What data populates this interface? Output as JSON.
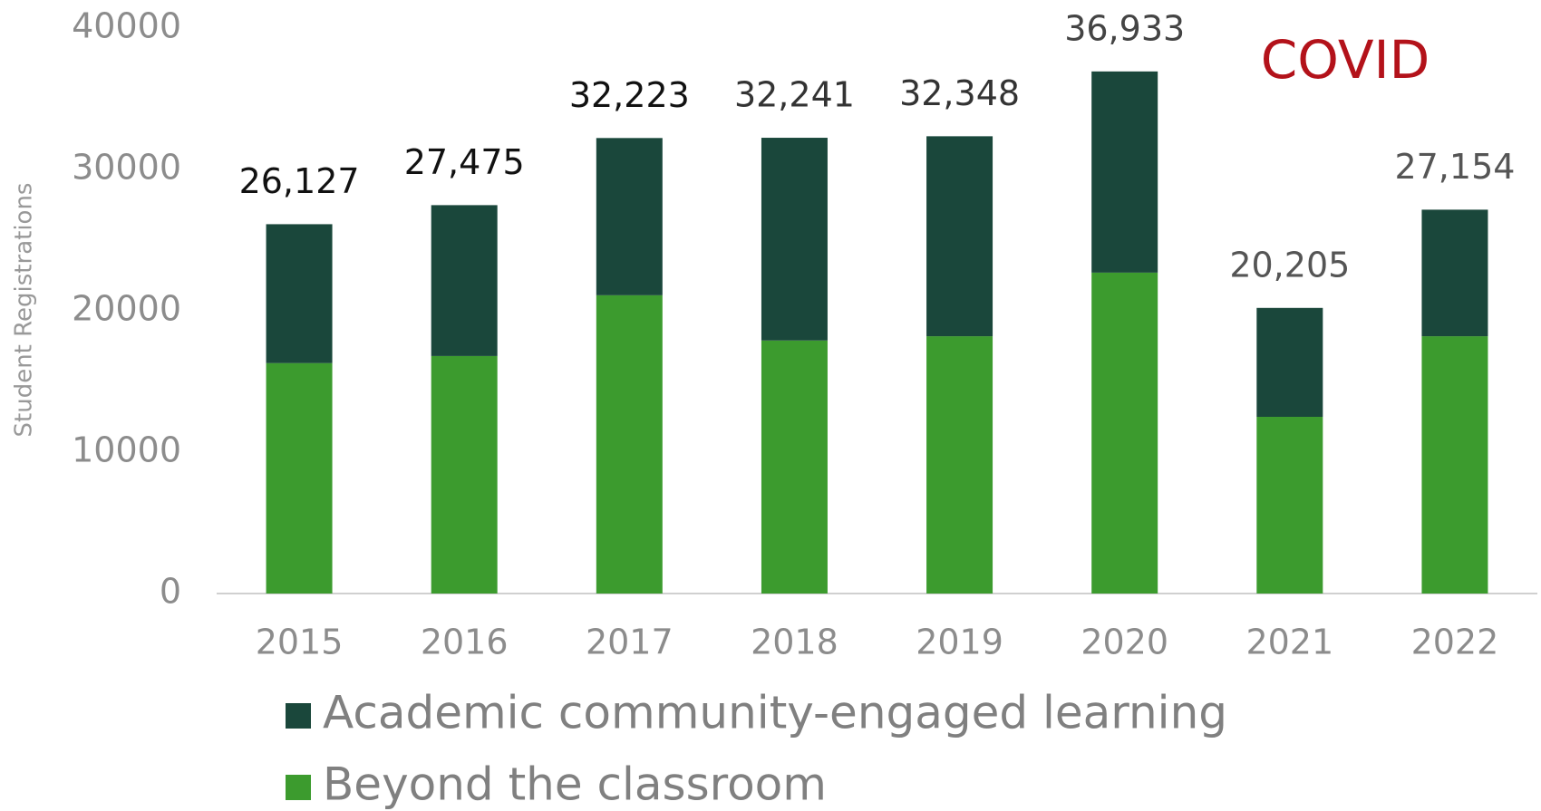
{
  "chart_data": {
    "type": "stacked_bar",
    "y_axis_label": "Student Registrations",
    "annotation": "COVID",
    "categories": [
      "2015",
      "2016",
      "2017",
      "2018",
      "2019",
      "2020",
      "2021",
      "2022"
    ],
    "series": [
      {
        "name": "Beyond the classroom",
        "color": "#3c9b2e",
        "values": [
          16300,
          16800,
          21100,
          17900,
          18200,
          22700,
          12500,
          18200
        ]
      },
      {
        "name": "Academic community-engaged learning",
        "color": "#1a473b",
        "values": [
          9827,
          10675,
          11123,
          14341,
          14148,
          14233,
          7705,
          8954
        ]
      }
    ],
    "total_labels": [
      "26,127",
      "27,475",
      "32,223",
      "32,241",
      "32,348",
      "36,933",
      "20,205",
      "27,154"
    ],
    "total_label_colors": [
      "#111111",
      "#111111",
      "#111111",
      "#333333",
      "#333333",
      "#444444",
      "#555555",
      "#555555"
    ],
    "ylim": [
      0,
      40000
    ],
    "yticks": [
      0,
      10000,
      20000,
      30000,
      40000
    ],
    "grid": false,
    "legend": "bottom"
  }
}
